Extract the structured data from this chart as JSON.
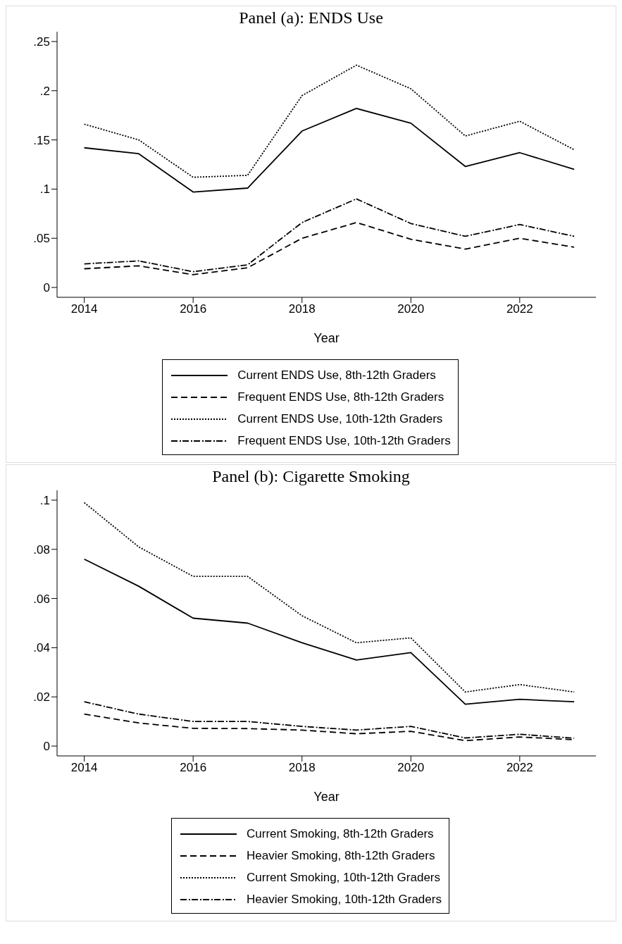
{
  "chart_data": [
    {
      "type": "line",
      "title": "Panel (a): ENDS Use",
      "xlabel": "Year",
      "x": [
        2014,
        2015,
        2016,
        2017,
        2018,
        2019,
        2020,
        2021,
        2022,
        2023
      ],
      "xlim": [
        2013.5,
        2023.4
      ],
      "xticks": [
        2014,
        2016,
        2018,
        2020,
        2022
      ],
      "ylim": [
        -0.01,
        0.26
      ],
      "yticks": [
        0,
        {
          "value": 0.05,
          "label": ".05"
        },
        {
          "value": 0.1,
          "label": ".1"
        },
        {
          "value": 0.15,
          "label": ".15"
        },
        {
          "value": 0.2,
          "label": ".2"
        },
        {
          "value": 0.25,
          "label": ".25"
        }
      ],
      "legend": "bottom",
      "series": [
        {
          "name": "Current ENDS Use, 8th-12th Graders",
          "color": "#000000",
          "line_style": "solid",
          "values": [
            0.142,
            0.136,
            0.097,
            0.101,
            0.159,
            0.182,
            0.167,
            0.123,
            0.137,
            0.12
          ]
        },
        {
          "name": "Frequent ENDS Use, 8th-12th Graders",
          "color": "#000000",
          "line_style": "dashed",
          "values": [
            0.019,
            0.022,
            0.013,
            0.02,
            0.05,
            0.066,
            0.049,
            0.039,
            0.05,
            0.041
          ]
        },
        {
          "name": "Current ENDS Use, 10th-12th Graders",
          "color": "#000000",
          "line_style": "dotted",
          "values": [
            0.166,
            0.15,
            0.112,
            0.114,
            0.195,
            0.226,
            0.202,
            0.154,
            0.169,
            0.14
          ]
        },
        {
          "name": "Frequent ENDS Use, 10th-12th Graders",
          "color": "#000000",
          "line_style": "dashdot",
          "values": [
            0.024,
            0.027,
            0.016,
            0.023,
            0.066,
            0.09,
            0.065,
            0.052,
            0.064,
            0.052
          ]
        }
      ]
    },
    {
      "type": "line",
      "title": "Panel (b): Cigarette Smoking",
      "xlabel": "Year",
      "x": [
        2014,
        2015,
        2016,
        2017,
        2018,
        2019,
        2020,
        2021,
        2022,
        2023
      ],
      "xlim": [
        2013.5,
        2023.4
      ],
      "xticks": [
        2014,
        2016,
        2018,
        2020,
        2022
      ],
      "ylim": [
        -0.004,
        0.104
      ],
      "yticks": [
        0,
        {
          "value": 0.02,
          "label": ".02"
        },
        {
          "value": 0.04,
          "label": ".04"
        },
        {
          "value": 0.06,
          "label": ".06"
        },
        {
          "value": 0.08,
          "label": ".08"
        },
        {
          "value": 0.1,
          "label": ".1"
        }
      ],
      "legend": "bottom",
      "series": [
        {
          "name": "Current Smoking, 8th-12th Graders",
          "color": "#000000",
          "line_style": "solid",
          "values": [
            0.076,
            0.065,
            0.052,
            0.05,
            0.042,
            0.035,
            0.038,
            0.017,
            0.019,
            0.018
          ]
        },
        {
          "name": "Heavier Smoking, 8th-12th Graders",
          "color": "#000000",
          "line_style": "dashed",
          "values": [
            0.013,
            0.0094,
            0.0072,
            0.0071,
            0.0065,
            0.005,
            0.006,
            0.0022,
            0.0037,
            0.0026
          ]
        },
        {
          "name": "Current Smoking, 10th-12th Graders",
          "color": "#000000",
          "line_style": "dotted",
          "values": [
            0.099,
            0.081,
            0.069,
            0.069,
            0.053,
            0.042,
            0.044,
            0.022,
            0.025,
            0.022
          ]
        },
        {
          "name": "Heavier Smoking, 10th-12th Graders",
          "color": "#000000",
          "line_style": "dashdot",
          "values": [
            0.018,
            0.013,
            0.01,
            0.01,
            0.008,
            0.0065,
            0.008,
            0.0033,
            0.0048,
            0.0032
          ]
        }
      ]
    }
  ]
}
